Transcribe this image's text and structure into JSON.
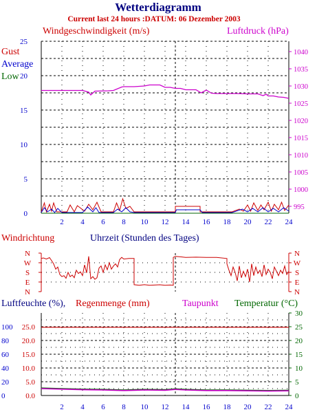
{
  "header": {
    "title": "Wetterdiagramm",
    "subtitle": "Current last 24 hours :DATUM: 06 Dezember 2003"
  },
  "colors": {
    "navy": "#000080",
    "red": "#cc0000",
    "magenta": "#cc00cc",
    "green": "#006600",
    "blue": "#0000cc",
    "grid": "#000000"
  },
  "chart_data": [
    {
      "type": "line",
      "id": "wind-pressure",
      "title": "Windgeschwindigkeit (m/s)",
      "ylabel_right": "Luftdruck (hPa)",
      "xlim": [
        0,
        24
      ],
      "ylim": [
        0,
        25
      ],
      "ylim_right": [
        993,
        1043
      ],
      "x_ticks": [
        2,
        4,
        6,
        8,
        10,
        12,
        14,
        16,
        18,
        20,
        22,
        24
      ],
      "y_ticks": [
        0,
        5,
        10,
        15,
        20,
        25
      ],
      "y_ticks_right": [
        995,
        1000,
        1005,
        1010,
        1015,
        1020,
        1025,
        1030,
        1035,
        1040
      ],
      "legend": [
        "Gust",
        "Average",
        "Low"
      ],
      "series": [
        {
          "name": "Luftdruck (hPa)",
          "axis": "right",
          "color": "#cc00cc",
          "x": [
            0,
            4,
            4.6,
            4.8,
            5.2,
            6.5,
            7,
            7.8,
            8,
            8.8,
            9,
            10,
            10.5,
            11,
            11.5,
            12,
            12.5,
            13,
            13.5,
            14,
            15,
            15.5,
            16,
            16.5,
            17,
            18,
            19,
            20,
            21,
            21.5,
            21.8,
            22,
            22.5,
            23,
            23.5,
            24
          ],
          "y": [
            1028.7,
            1028.7,
            1028.2,
            1027.4,
            1028.5,
            1028.6,
            1028.7,
            1029.7,
            1029.8,
            1029.8,
            1029.8,
            1030.0,
            1030.3,
            1030.3,
            1030.3,
            1029.6,
            1029.6,
            1029.3,
            1029.3,
            1028.9,
            1028.9,
            1028.0,
            1028.8,
            1027.9,
            1027.8,
            1027.8,
            1027.8,
            1027.7,
            1027.7,
            1027.2,
            1027.6,
            1027.1,
            1027.1,
            1026.8,
            1026.7,
            1026.4
          ]
        },
        {
          "name": "Gust",
          "axis": "left",
          "color": "#cc0000",
          "x": [
            0,
            0.3,
            0.5,
            0.8,
            1,
            1.2,
            1.5,
            2.5,
            2.8,
            3.2,
            3.5,
            4.2,
            4.6,
            5,
            5.4,
            5.8,
            7,
            7.3,
            7.6,
            7.9,
            8.2,
            8.6,
            9,
            12.5,
            13,
            13,
            15.4,
            15.4,
            16,
            18.5,
            19.2,
            19.6,
            20,
            20.3,
            20.6,
            21,
            21.3,
            21.6,
            22,
            22.3,
            22.6,
            23,
            23.3,
            23.6,
            24
          ],
          "y": [
            0.2,
            1.5,
            0.2,
            1.3,
            0.3,
            1.5,
            0.2,
            0.2,
            1.2,
            0.2,
            1.1,
            0.3,
            1.3,
            0.5,
            1.6,
            0.2,
            0.2,
            1.5,
            0.4,
            2.1,
            0.7,
            1.0,
            0.2,
            0.2,
            0.2,
            1.0,
            1.0,
            0.2,
            0.2,
            0.2,
            0.6,
            0.3,
            1.2,
            0.3,
            1.5,
            0.4,
            1.2,
            0.5,
            1.6,
            0.3,
            1.3,
            0.5,
            1.6,
            0.4,
            1.2
          ]
        },
        {
          "name": "Average",
          "axis": "left",
          "color": "#0000cc",
          "x": [
            0,
            0.3,
            0.6,
            1,
            1.3,
            1.6,
            2,
            4,
            4.5,
            5,
            5.3,
            5.6,
            6,
            7,
            7.4,
            7.8,
            8.2,
            8.6,
            9,
            13,
            13.1,
            15.4,
            15.6,
            18.5,
            19.5,
            20,
            20.5,
            21,
            21.5,
            22,
            22.5,
            23,
            23.5,
            24
          ],
          "y": [
            0.1,
            0.8,
            0.2,
            0.6,
            0.1,
            0.7,
            0.1,
            0.1,
            0.9,
            0.2,
            0.8,
            0.1,
            0.1,
            0.1,
            0.6,
            0.2,
            0.8,
            0.2,
            0.1,
            0.1,
            0.5,
            0.5,
            0.1,
            0.1,
            0.6,
            0.2,
            0.7,
            0.2,
            0.8,
            0.2,
            0.7,
            0.2,
            0.8,
            0.3
          ]
        },
        {
          "name": "Low",
          "axis": "left",
          "color": "#006600",
          "x": [
            0,
            24
          ],
          "y": [
            0,
            0
          ]
        }
      ]
    },
    {
      "type": "line",
      "id": "wind-direction",
      "title": "Windrichtung",
      "xlabel": "Uhrzeit (Stunden des Tages)",
      "xlim": [
        0,
        24
      ],
      "y_ticks": [
        "N",
        "W",
        "S",
        "E",
        "N"
      ],
      "y_tick_degrees": [
        360,
        270,
        180,
        90,
        0
      ],
      "series": [
        {
          "name": "Windrichtung",
          "color": "#cc0000",
          "x": [
            0,
            0.2,
            0.5,
            0.8,
            1,
            1.2,
            1.4,
            1.6,
            1.8,
            2,
            2.2,
            2.4,
            2.6,
            2.8,
            3,
            3.2,
            3.4,
            3.6,
            3.8,
            4,
            4.2,
            4.4,
            4.6,
            4.8,
            5,
            5.2,
            5.4,
            5.6,
            5.8,
            6,
            6.2,
            6.4,
            6.6,
            6.8,
            7,
            7.2,
            7.4,
            7.6,
            7.8,
            8,
            8.5,
            9,
            9,
            9.5,
            10,
            10.5,
            11,
            11.5,
            12,
            12.5,
            12.8,
            12.8,
            13,
            13.5,
            14,
            15,
            16,
            17,
            18,
            18,
            18.2,
            18.4,
            18.6,
            18.8,
            19,
            19.2,
            19.4,
            19.6,
            19.8,
            20,
            20.2,
            20.4,
            20.6,
            20.8,
            21,
            21.2,
            21.4,
            21.6,
            21.8,
            22,
            22.2,
            22.4,
            22.6,
            22.8,
            23,
            23.2,
            23.4,
            23.6,
            23.8,
            24
          ],
          "y": [
            310,
            315,
            305,
            318,
            290,
            260,
            210,
            230,
            160,
            140,
            150,
            125,
            180,
            140,
            155,
            130,
            200,
            170,
            185,
            150,
            250,
            175,
            330,
            120,
            140,
            115,
            130,
            220,
            240,
            180,
            250,
            205,
            270,
            210,
            240,
            260,
            230,
            300,
            320,
            305,
            310,
            310,
            65,
            60,
            65,
            60,
            62,
            64,
            60,
            62,
            60,
            320,
            330,
            325,
            320,
            322,
            320,
            320,
            310,
            260,
            200,
            150,
            230,
            180,
            100,
            240,
            130,
            190,
            140,
            210,
            90,
            260,
            150,
            230,
            170,
            200,
            140,
            250,
            160,
            210,
            180,
            120,
            230,
            190,
            150,
            200,
            170,
            240,
            160,
            190
          ]
        }
      ]
    },
    {
      "type": "line",
      "id": "humidity-rain",
      "title": "Luftfeuchte (%),Regenmenge (mm)",
      "labels": [
        "Taupunkt",
        "Temperatur (°C)"
      ],
      "xlim": [
        0,
        24
      ],
      "ylim_humidity": [
        0,
        120
      ],
      "ylim_rain": [
        0,
        30
      ],
      "ylim_right": [
        0,
        30
      ],
      "x_ticks": [
        2,
        4,
        6,
        8,
        10,
        12,
        14,
        16,
        18,
        20,
        22,
        24
      ],
      "y_ticks_humidity": [
        0,
        20,
        40,
        60,
        80,
        100
      ],
      "y_ticks_rain": [
        0.0,
        5.0,
        10.0,
        15.0,
        20.0,
        25.0
      ],
      "y_ticks_right": [
        0,
        5,
        10,
        15,
        20,
        25,
        30
      ],
      "series": [
        {
          "name": "Regenmenge",
          "axis": "rain",
          "color": "#cc0000",
          "x": [
            0,
            24
          ],
          "y": [
            24.8,
            24.8
          ]
        },
        {
          "name": "Temperatur",
          "axis": "right",
          "color": "#006600",
          "x": [
            0,
            2,
            4,
            6,
            8,
            9,
            10,
            12,
            13,
            14,
            16,
            18,
            20,
            22,
            24
          ],
          "y": [
            2.7,
            2.5,
            2.3,
            2.2,
            2.0,
            2.1,
            2.2,
            2.1,
            2.4,
            2.2,
            2.0,
            2.0,
            1.9,
            1.8,
            1.9
          ]
        },
        {
          "name": "Taupunkt",
          "axis": "right",
          "color": "#cc00cc",
          "x": [
            0,
            2,
            4,
            6,
            8,
            9,
            10,
            12,
            13,
            14,
            16,
            18,
            20,
            22,
            24
          ],
          "y": [
            2.5,
            2.3,
            2.1,
            2.0,
            1.8,
            1.9,
            2.0,
            1.9,
            2.2,
            2.0,
            1.8,
            1.8,
            1.7,
            1.6,
            1.7
          ]
        }
      ]
    }
  ]
}
